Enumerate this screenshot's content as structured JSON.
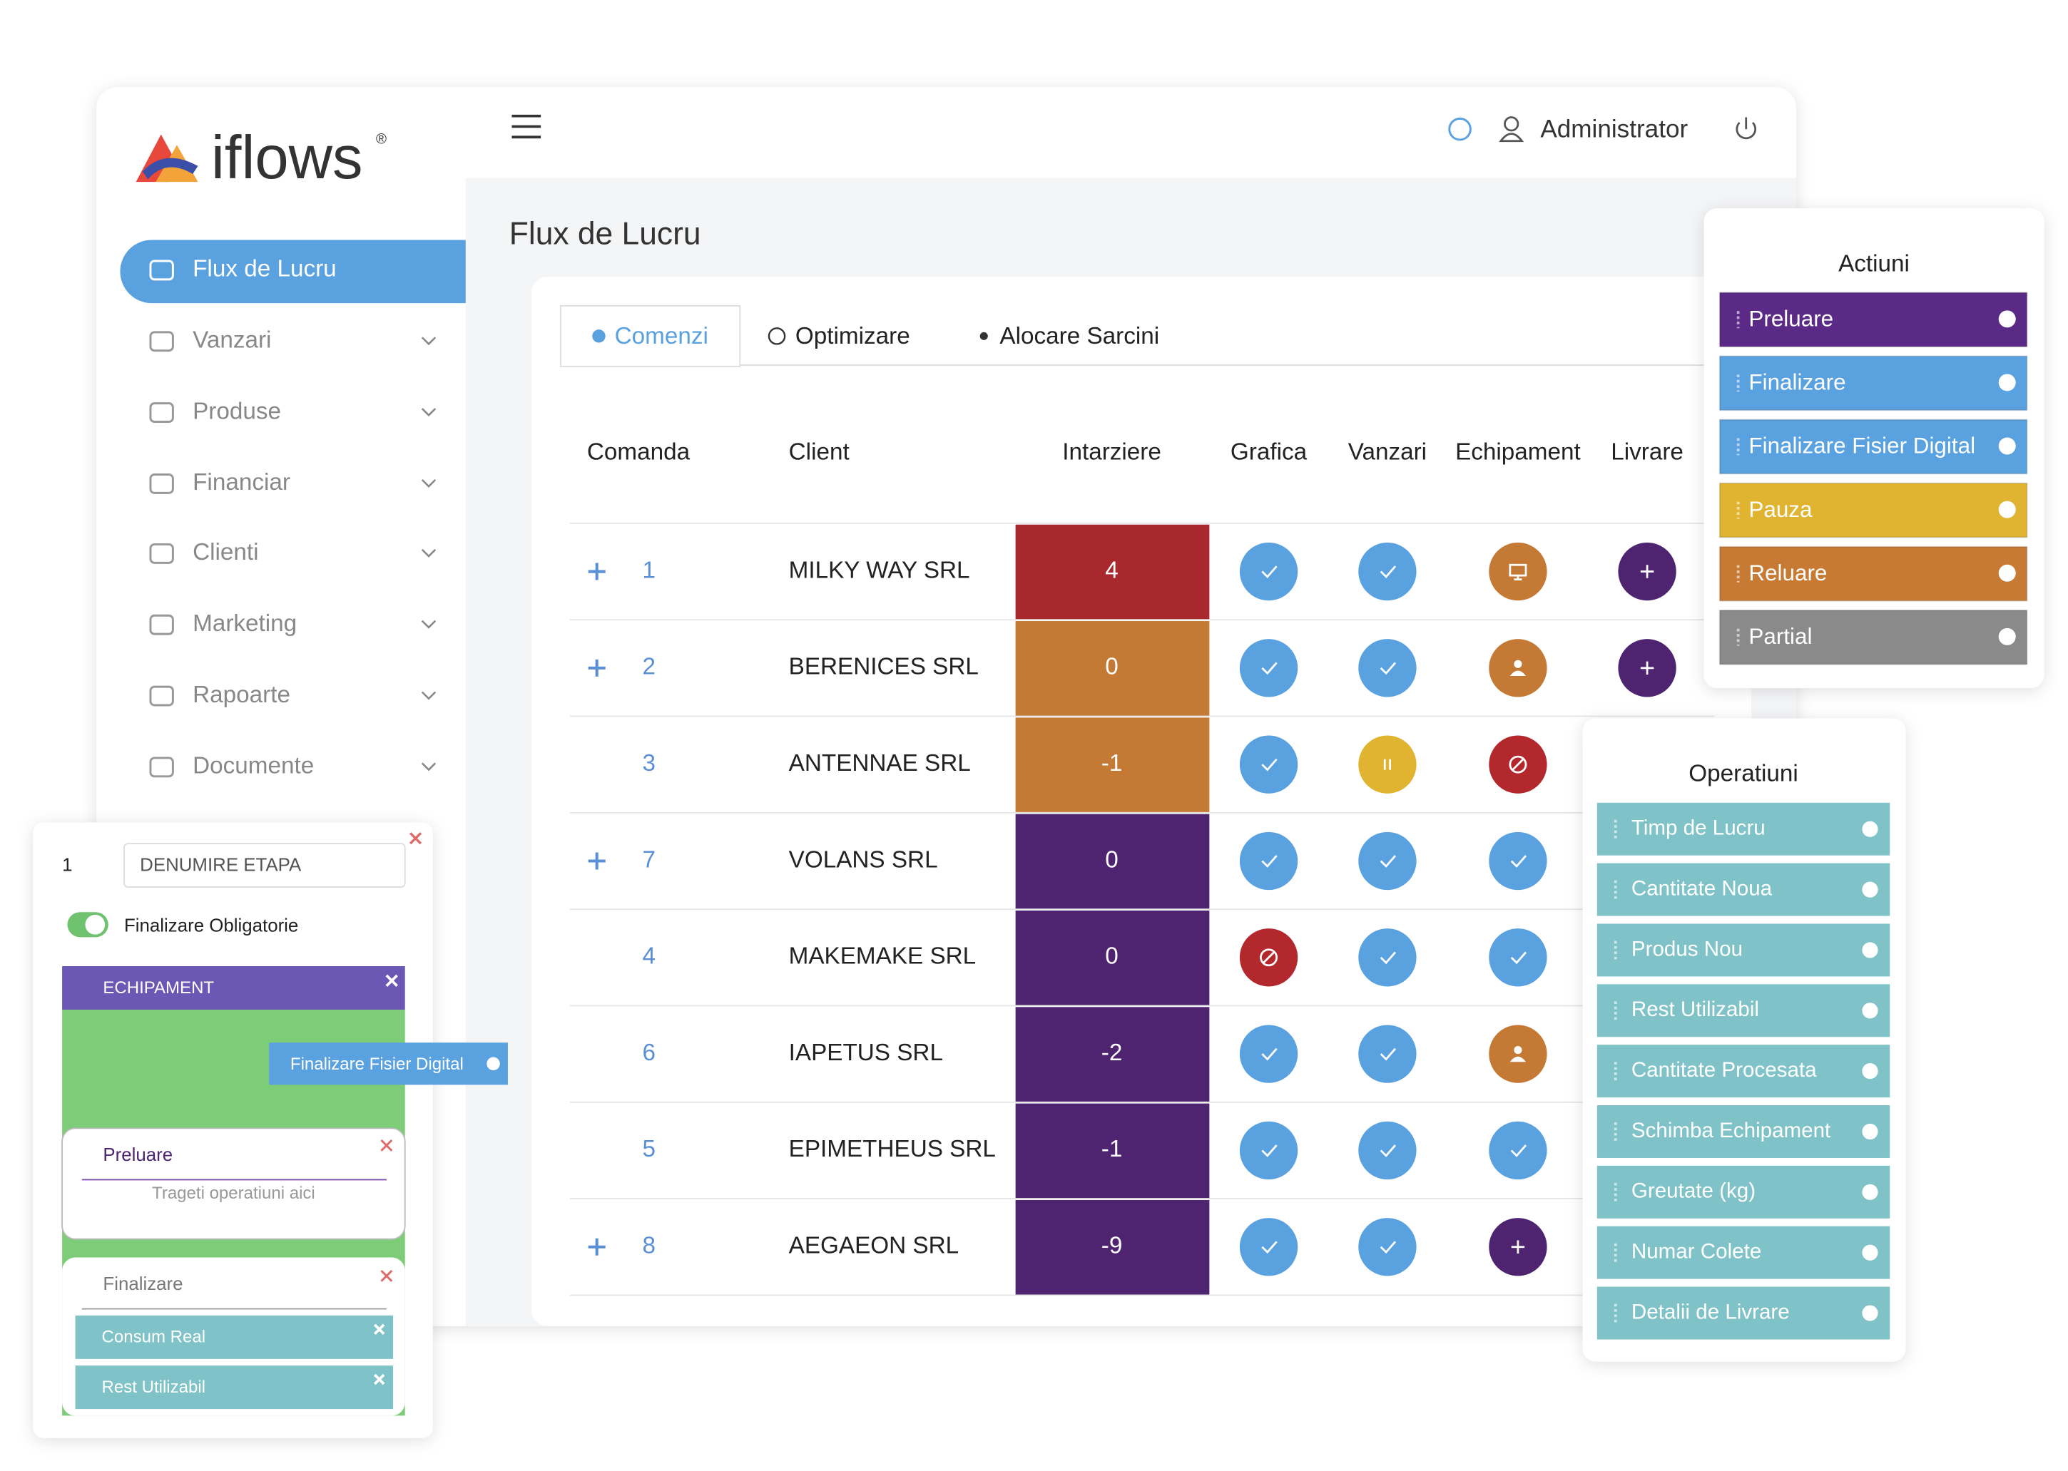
{
  "brand": {
    "name": "iflows",
    "mark": "®"
  },
  "nav": [
    "Flux de Lucru",
    "Vanzari",
    "Produse",
    "Financiar",
    "Clienti",
    "Marketing",
    "Rapoarte",
    "Documente"
  ],
  "header": {
    "user": "Administrator"
  },
  "page_title": "Flux de Lucru",
  "tabs": [
    "Comenzi",
    "Optimizare",
    "Alocare Sarcini"
  ],
  "table": {
    "columns": [
      "Comanda",
      "Client",
      "Intarziere",
      "Grafica",
      "Vanzari",
      "Echipament",
      "Livrare"
    ],
    "rows": [
      [
        "1",
        "MILKY WAY SRL",
        "4"
      ],
      [
        "2",
        "BERENICES SRL",
        "0"
      ],
      [
        "3",
        "ANTENNAE SRL",
        "-1"
      ],
      [
        "7",
        "VOLANS SRL",
        "0"
      ],
      [
        "4",
        "MAKEMAKE SRL",
        "0"
      ],
      [
        "6",
        "IAPETUS SRL",
        "-2"
      ],
      [
        "5",
        "EPIMETHEUS SRL",
        "-1"
      ],
      [
        "8",
        "AEGAEON SRL",
        "-9"
      ]
    ]
  },
  "actions": {
    "title": "Actiuni",
    "items": [
      "Preluare",
      "Finalizare",
      "Finalizare Fisier Digital",
      "Pauza",
      "Reluare",
      "Partial"
    ]
  },
  "operations": {
    "title": "Operatiuni",
    "items": [
      "Timp de Lucru",
      "Cantitate Noua",
      "Produs Nou",
      "Rest Utilizabil",
      "Cantitate Procesata",
      "Schimba Echipament",
      "Greutate (kg)",
      "Numar Colete",
      "Detalii de Livrare"
    ]
  },
  "editor": {
    "step": "1",
    "name_placeholder": "DENUMIRE ETAPA",
    "toggle": "Finalizare Obligatorie",
    "section": "ECHIPAMENT",
    "dragged": "Finalizare Fisier Digital",
    "cards": [
      {
        "title": "Preluare",
        "hint": "Trageti operatiuni aici"
      },
      {
        "title": "Finalizare",
        "chips": [
          "Consum Real",
          "Rest Utilizabil"
        ]
      }
    ]
  }
}
